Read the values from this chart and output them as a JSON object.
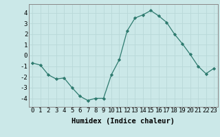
{
  "x": [
    0,
    1,
    2,
    3,
    4,
    5,
    6,
    7,
    8,
    9,
    10,
    11,
    12,
    13,
    14,
    15,
    16,
    17,
    18,
    19,
    20,
    21,
    22,
    23
  ],
  "y": [
    -0.7,
    -0.9,
    -1.8,
    -2.2,
    -2.1,
    -3.0,
    -3.8,
    -4.2,
    -4.0,
    -4.0,
    -1.8,
    -0.4,
    2.3,
    3.5,
    3.8,
    4.2,
    3.7,
    3.1,
    2.0,
    1.1,
    0.1,
    -1.0,
    -1.7,
    -1.2
  ],
  "line_color": "#2d7a6e",
  "marker": "D",
  "marker_size": 2.2,
  "bg_color": "#cbe8e8",
  "grid_color": "#b8d8d8",
  "xlabel": "Humidex (Indice chaleur)",
  "ylim": [
    -4.8,
    4.8
  ],
  "xlim": [
    -0.5,
    23.5
  ],
  "yticks": [
    -4,
    -3,
    -2,
    -1,
    0,
    1,
    2,
    3,
    4
  ],
  "xticks": [
    0,
    1,
    2,
    3,
    4,
    5,
    6,
    7,
    8,
    9,
    10,
    11,
    12,
    13,
    14,
    15,
    16,
    17,
    18,
    19,
    20,
    21,
    22,
    23
  ],
  "tick_fontsize": 6.5,
  "xlabel_fontsize": 7.5,
  "spine_color": "#888888"
}
